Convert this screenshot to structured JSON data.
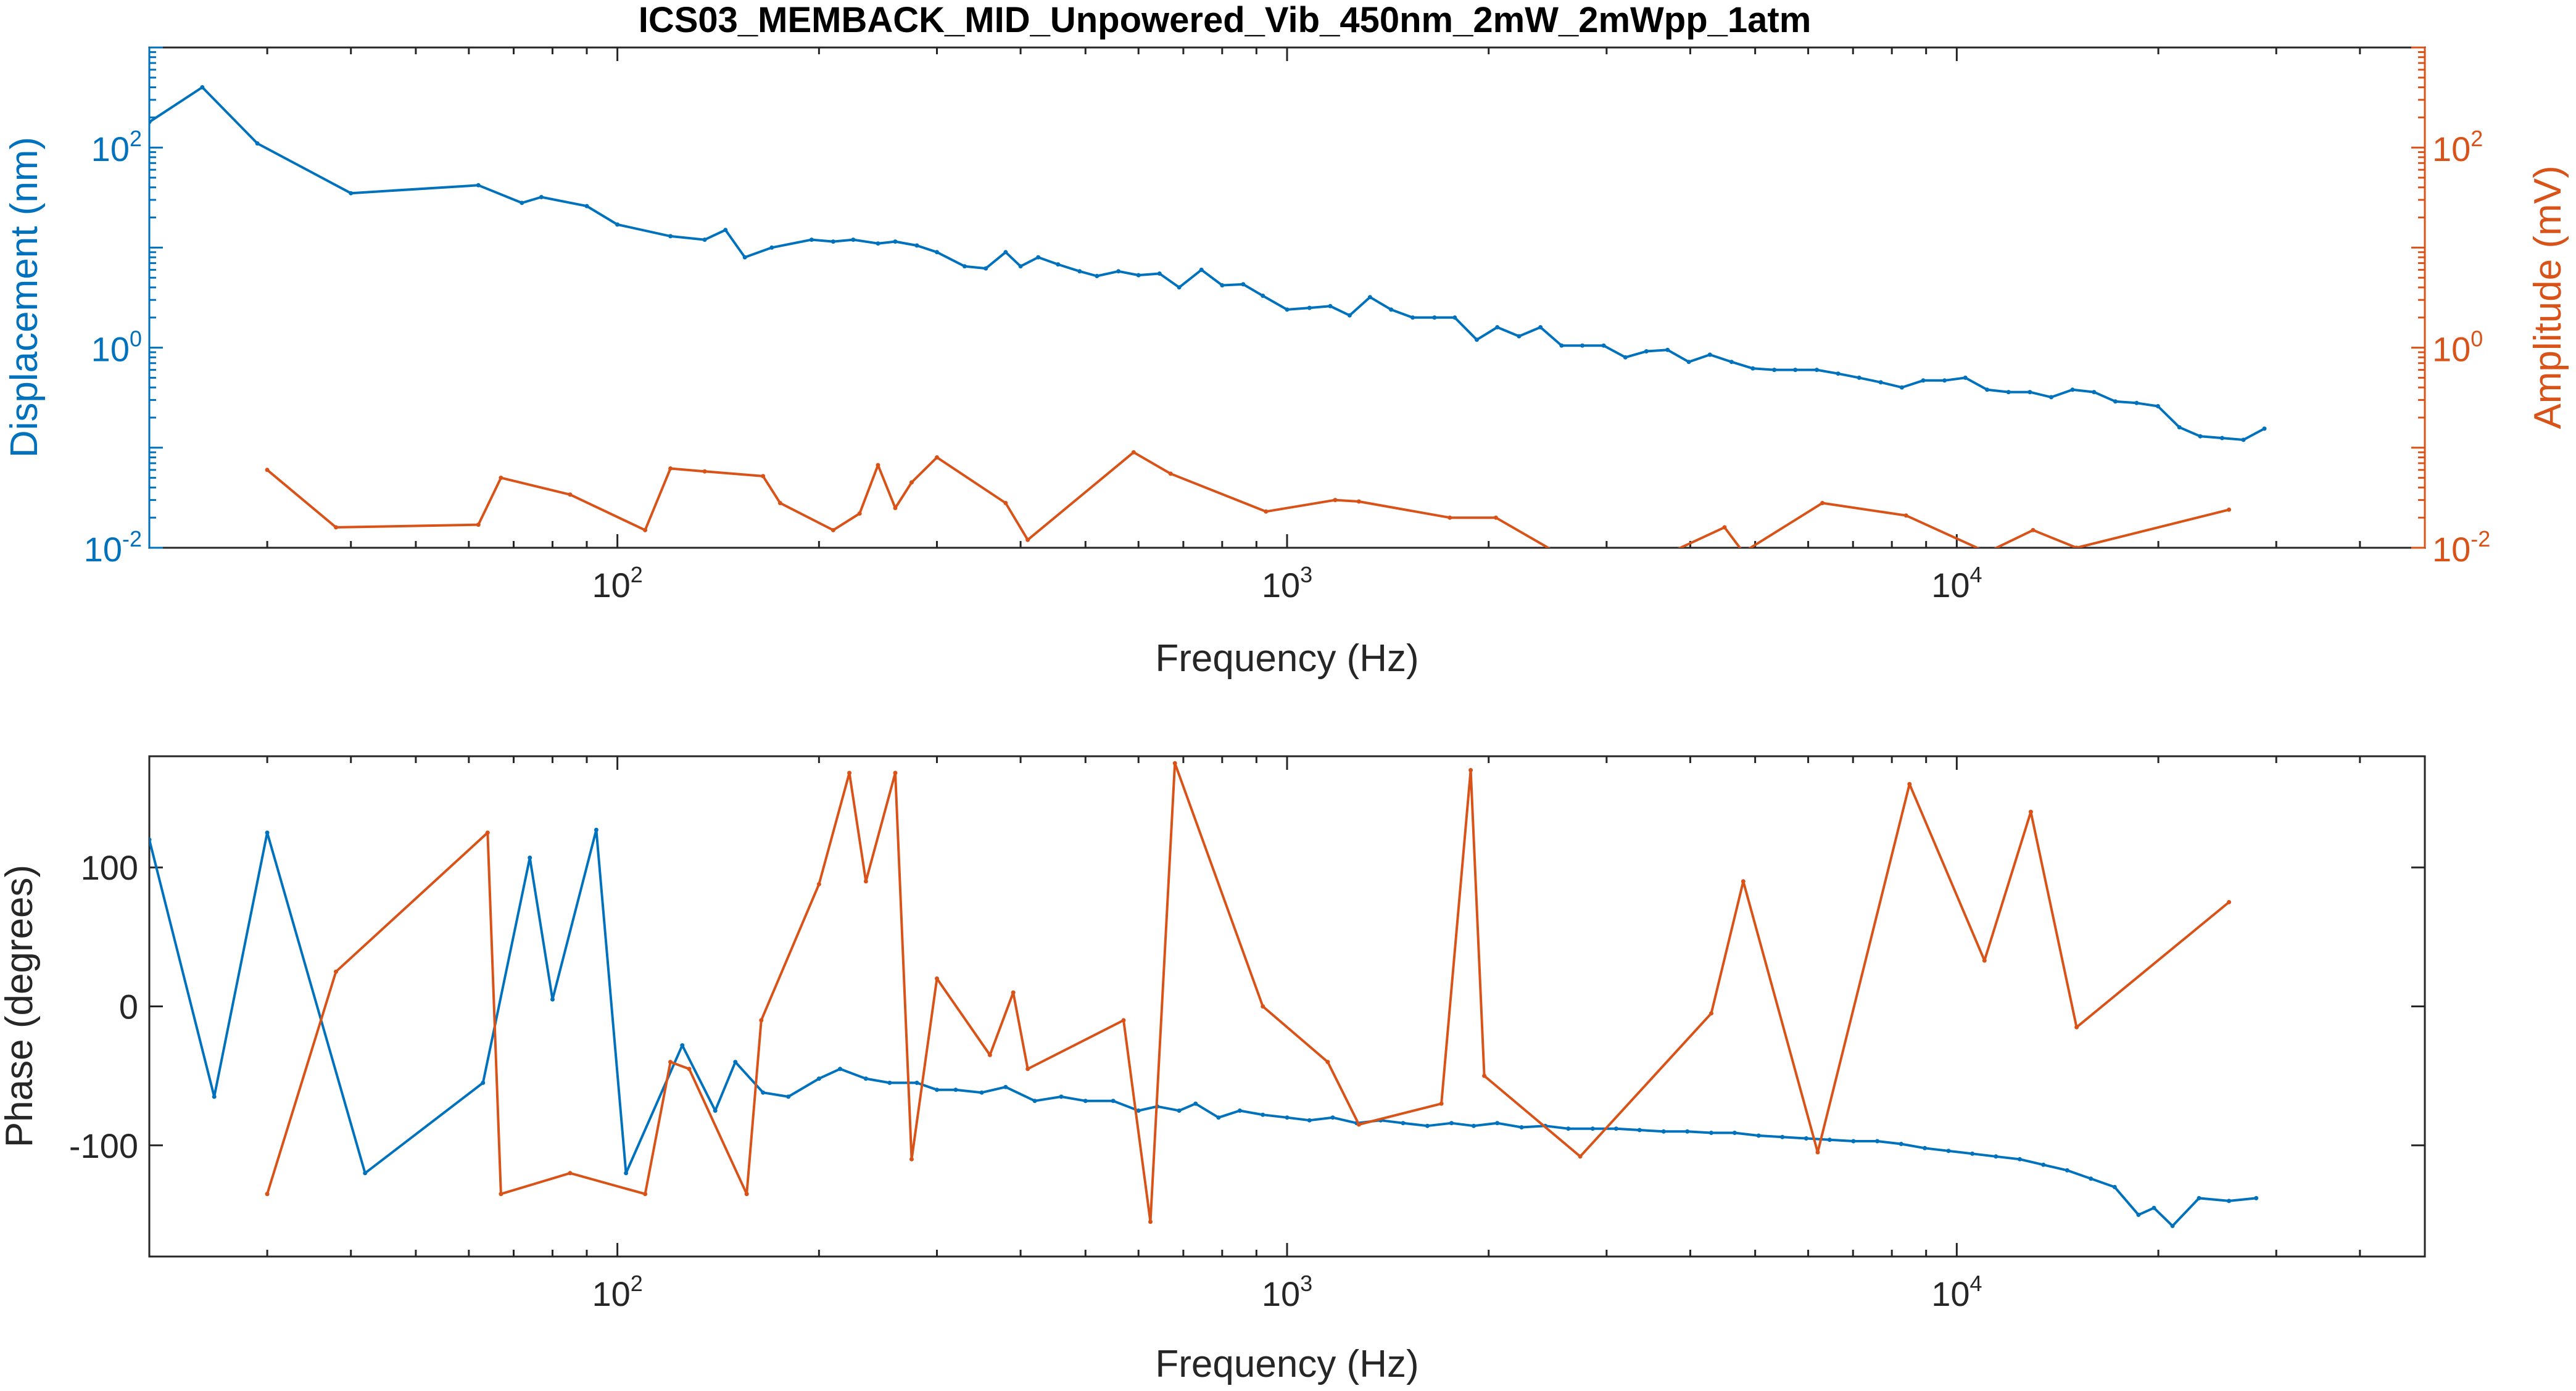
{
  "chart_data": [
    {
      "type": "line",
      "title": "ICS03_MEMBACK_MID_Unpowered_Vib_450nm_2mW_2mWpp_1atm",
      "xlabel": "Frequency (Hz)",
      "ylabel_left": "Displacement (nm)",
      "ylabel_right": "Amplitude (mV)",
      "xscale": "log",
      "yscale": "log",
      "xlim": [
        20,
        50000
      ],
      "ylim_left": [
        0.01,
        1000
      ],
      "ylim_right": [
        0.01,
        1000
      ],
      "x_ticks": [
        {
          "base": "10",
          "exp": "2",
          "value": 100
        },
        {
          "base": "10",
          "exp": "3",
          "value": 1000
        },
        {
          "base": "10",
          "exp": "4",
          "value": 10000
        }
      ],
      "y_ticks_left": [
        {
          "base": "10",
          "exp": "-2",
          "value": 0.01
        },
        {
          "base": "10",
          "exp": "0",
          "value": 1
        },
        {
          "base": "10",
          "exp": "2",
          "value": 100
        }
      ],
      "y_ticks_right": [
        {
          "base": "10",
          "exp": "-2",
          "value": 0.01
        },
        {
          "base": "10",
          "exp": "0",
          "value": 1
        },
        {
          "base": "10",
          "exp": "2",
          "value": 100
        }
      ],
      "series": [
        {
          "axis": "left",
          "color": "#0072BD",
          "x": [
            20,
            24,
            29,
            40,
            62,
            72,
            77,
            90,
            100,
            120,
            135,
            145,
            155,
            170,
            195,
            210,
            225,
            245,
            260,
            280,
            300,
            330,
            355,
            380,
            400,
            425,
            455,
            490,
            520,
            560,
            600,
            645,
            690,
            745,
            800,
            860,
            920,
            1000,
            1080,
            1160,
            1240,
            1330,
            1430,
            1540,
            1660,
            1780,
            1920,
            2060,
            2220,
            2390,
            2570,
            2760,
            2970,
            3200,
            3440,
            3700,
            3980,
            4280,
            4610,
            4960,
            5340,
            5740,
            6180,
            6650,
            7150,
            7700,
            8280,
            8910,
            9590,
            10300,
            11100,
            11950,
            12860,
            13840,
            14890,
            16030,
            17250,
            18560,
            19970,
            21500,
            23100,
            24900,
            26800,
            28800
          ],
          "y": [
            180,
            400,
            110,
            35,
            42,
            28,
            32,
            26,
            17,
            13,
            12,
            15,
            8,
            10,
            12,
            11.5,
            12,
            11,
            11.5,
            10.5,
            9,
            6.5,
            6.2,
            9,
            6.5,
            8,
            6.8,
            5.8,
            5.2,
            5.8,
            5.3,
            5.5,
            4,
            6,
            4.2,
            4.3,
            3.3,
            2.4,
            2.5,
            2.6,
            2.1,
            3.2,
            2.4,
            2,
            2,
            2,
            1.2,
            1.6,
            1.3,
            1.6,
            1.05,
            1.05,
            1.05,
            0.8,
            0.92,
            0.95,
            0.72,
            0.85,
            0.72,
            0.62,
            0.6,
            0.6,
            0.6,
            0.55,
            0.5,
            0.45,
            0.4,
            0.47,
            0.47,
            0.5,
            0.38,
            0.36,
            0.36,
            0.32,
            0.38,
            0.36,
            0.29,
            0.28,
            0.26,
            0.16,
            0.13,
            0.125,
            0.12,
            0.155
          ]
        },
        {
          "axis": "right",
          "color": "#D95319",
          "x": [
            30,
            38,
            62,
            67,
            85,
            110,
            120,
            135,
            165,
            175,
            210,
            230,
            245,
            260,
            275,
            300,
            380,
            410,
            590,
            670,
            930,
            1180,
            1280,
            1750,
            2050,
            2600,
            3600,
            4500,
            4800,
            6300,
            8400,
            11100,
            13000,
            15100,
            25500
          ],
          "y": [
            0.06,
            0.016,
            0.017,
            0.05,
            0.034,
            0.015,
            0.062,
            0.058,
            0.052,
            0.028,
            0.015,
            0.022,
            0.067,
            0.025,
            0.045,
            0.08,
            0.028,
            0.012,
            0.09,
            0.055,
            0.023,
            0.03,
            0.029,
            0.02,
            0.02,
            0.008,
            0.008,
            0.016,
            0.009,
            0.028,
            0.021,
            0.009,
            0.015,
            0.01,
            0.024
          ]
        }
      ]
    },
    {
      "type": "line",
      "xlabel": "Frequency (Hz)",
      "ylabel": "Phase (degrees)",
      "xscale": "log",
      "xlim": [
        20,
        50000
      ],
      "ylim": [
        -180,
        180
      ],
      "x_ticks": [
        {
          "base": "10",
          "exp": "2",
          "value": 100
        },
        {
          "base": "10",
          "exp": "3",
          "value": 1000
        },
        {
          "base": "10",
          "exp": "4",
          "value": 10000
        }
      ],
      "y_ticks": [
        {
          "label": "100",
          "value": 100
        },
        {
          "label": "0",
          "value": 0
        },
        {
          "label": "-100",
          "value": -100
        }
      ],
      "series": [
        {
          "color": "#0072BD",
          "x": [
            20,
            25,
            30,
            42,
            63,
            74,
            80,
            93,
            103,
            125,
            140,
            150,
            165,
            180,
            200,
            215,
            235,
            255,
            280,
            300,
            320,
            350,
            380,
            420,
            460,
            500,
            550,
            600,
            640,
            690,
            730,
            790,
            850,
            920,
            1000,
            1080,
            1170,
            1270,
            1380,
            1490,
            1620,
            1760,
            1900,
            2060,
            2240,
            2430,
            2630,
            2860,
            3100,
            3360,
            3650,
            3960,
            4300,
            4660,
            5060,
            5490,
            5960,
            6460,
            7010,
            7610,
            8260,
            8960,
            9720,
            10550,
            11440,
            12420,
            13470,
            14620,
            15860,
            17210,
            18680,
            19700,
            21000,
            23000,
            25500,
            28000
          ],
          "y": [
            120,
            -65,
            125,
            -120,
            -55,
            107,
            5,
            127,
            -120,
            -28,
            -75,
            -40,
            -62,
            -65,
            -52,
            -45,
            -52,
            -55,
            -55,
            -60,
            -60,
            -62,
            -58,
            -68,
            -65,
            -68,
            -68,
            -75,
            -72,
            -75,
            -70,
            -80,
            -75,
            -78,
            -80,
            -82,
            -80,
            -84,
            -82,
            -84,
            -86,
            -84,
            -86,
            -84,
            -87,
            -86,
            -88,
            -88,
            -88,
            -89,
            -90,
            -90,
            -91,
            -91,
            -93,
            -94,
            -95,
            -96,
            -97,
            -97,
            -99,
            -102,
            -104,
            -106,
            -108,
            -110,
            -114,
            -118,
            -124,
            -130,
            -150,
            -145,
            -158,
            -138,
            -140,
            -138
          ]
        },
        {
          "color": "#D95319",
          "x": [
            30,
            38,
            64,
            67,
            85,
            110,
            120,
            128,
            156,
            164,
            200,
            222,
            235,
            260,
            275,
            300,
            360,
            390,
            410,
            570,
            625,
            680,
            920,
            1150,
            1280,
            1700,
            1880,
            1970,
            2740,
            4300,
            4800,
            6200,
            8500,
            11000,
            12900,
            15100,
            25500
          ],
          "y": [
            -135,
            25,
            125,
            -135,
            -120,
            -135,
            -40,
            -45,
            -135,
            -10,
            88,
            168,
            90,
            168,
            -110,
            20,
            -35,
            10,
            -45,
            -10,
            -155,
            175,
            0,
            -40,
            -85,
            -70,
            170,
            -50,
            -108,
            -5,
            90,
            -105,
            160,
            33,
            140,
            -15,
            75
          ]
        }
      ]
    }
  ]
}
